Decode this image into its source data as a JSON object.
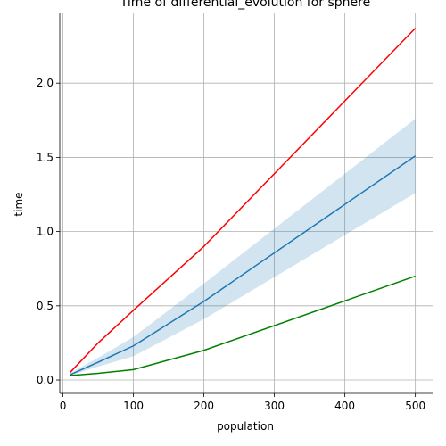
{
  "chart_data": {
    "type": "line",
    "title": "Time of differential_evolution for sphere",
    "xlabel": "population",
    "ylabel": "time",
    "xlim": [
      -4.5,
      524.5
    ],
    "ylim": [
      -0.09,
      2.47
    ],
    "xticks": [
      0,
      100,
      200,
      300,
      400,
      500
    ],
    "yticks": [
      0.0,
      0.5,
      1.0,
      1.5,
      2.0
    ],
    "xtick_labels": [
      "0",
      "100",
      "200",
      "300",
      "400",
      "500"
    ],
    "ytick_labels": [
      "0.0",
      "0.5",
      "1.0",
      "1.5",
      "2.0"
    ],
    "grid": true,
    "x": [
      10,
      50,
      100,
      200,
      500
    ],
    "series": [
      {
        "color": "#ff0000",
        "values": [
          0.05,
          0.25,
          0.47,
          0.9,
          2.37
        ]
      },
      {
        "color": "#1f77b4",
        "values": [
          0.035,
          0.12,
          0.23,
          0.53,
          1.51
        ],
        "band_low": [
          0.03,
          0.09,
          0.16,
          0.41,
          1.26
        ],
        "band_high": [
          0.045,
          0.15,
          0.29,
          0.65,
          1.76
        ]
      },
      {
        "color": "#008000",
        "values": [
          0.03,
          0.045,
          0.07,
          0.2,
          0.7
        ]
      }
    ]
  }
}
